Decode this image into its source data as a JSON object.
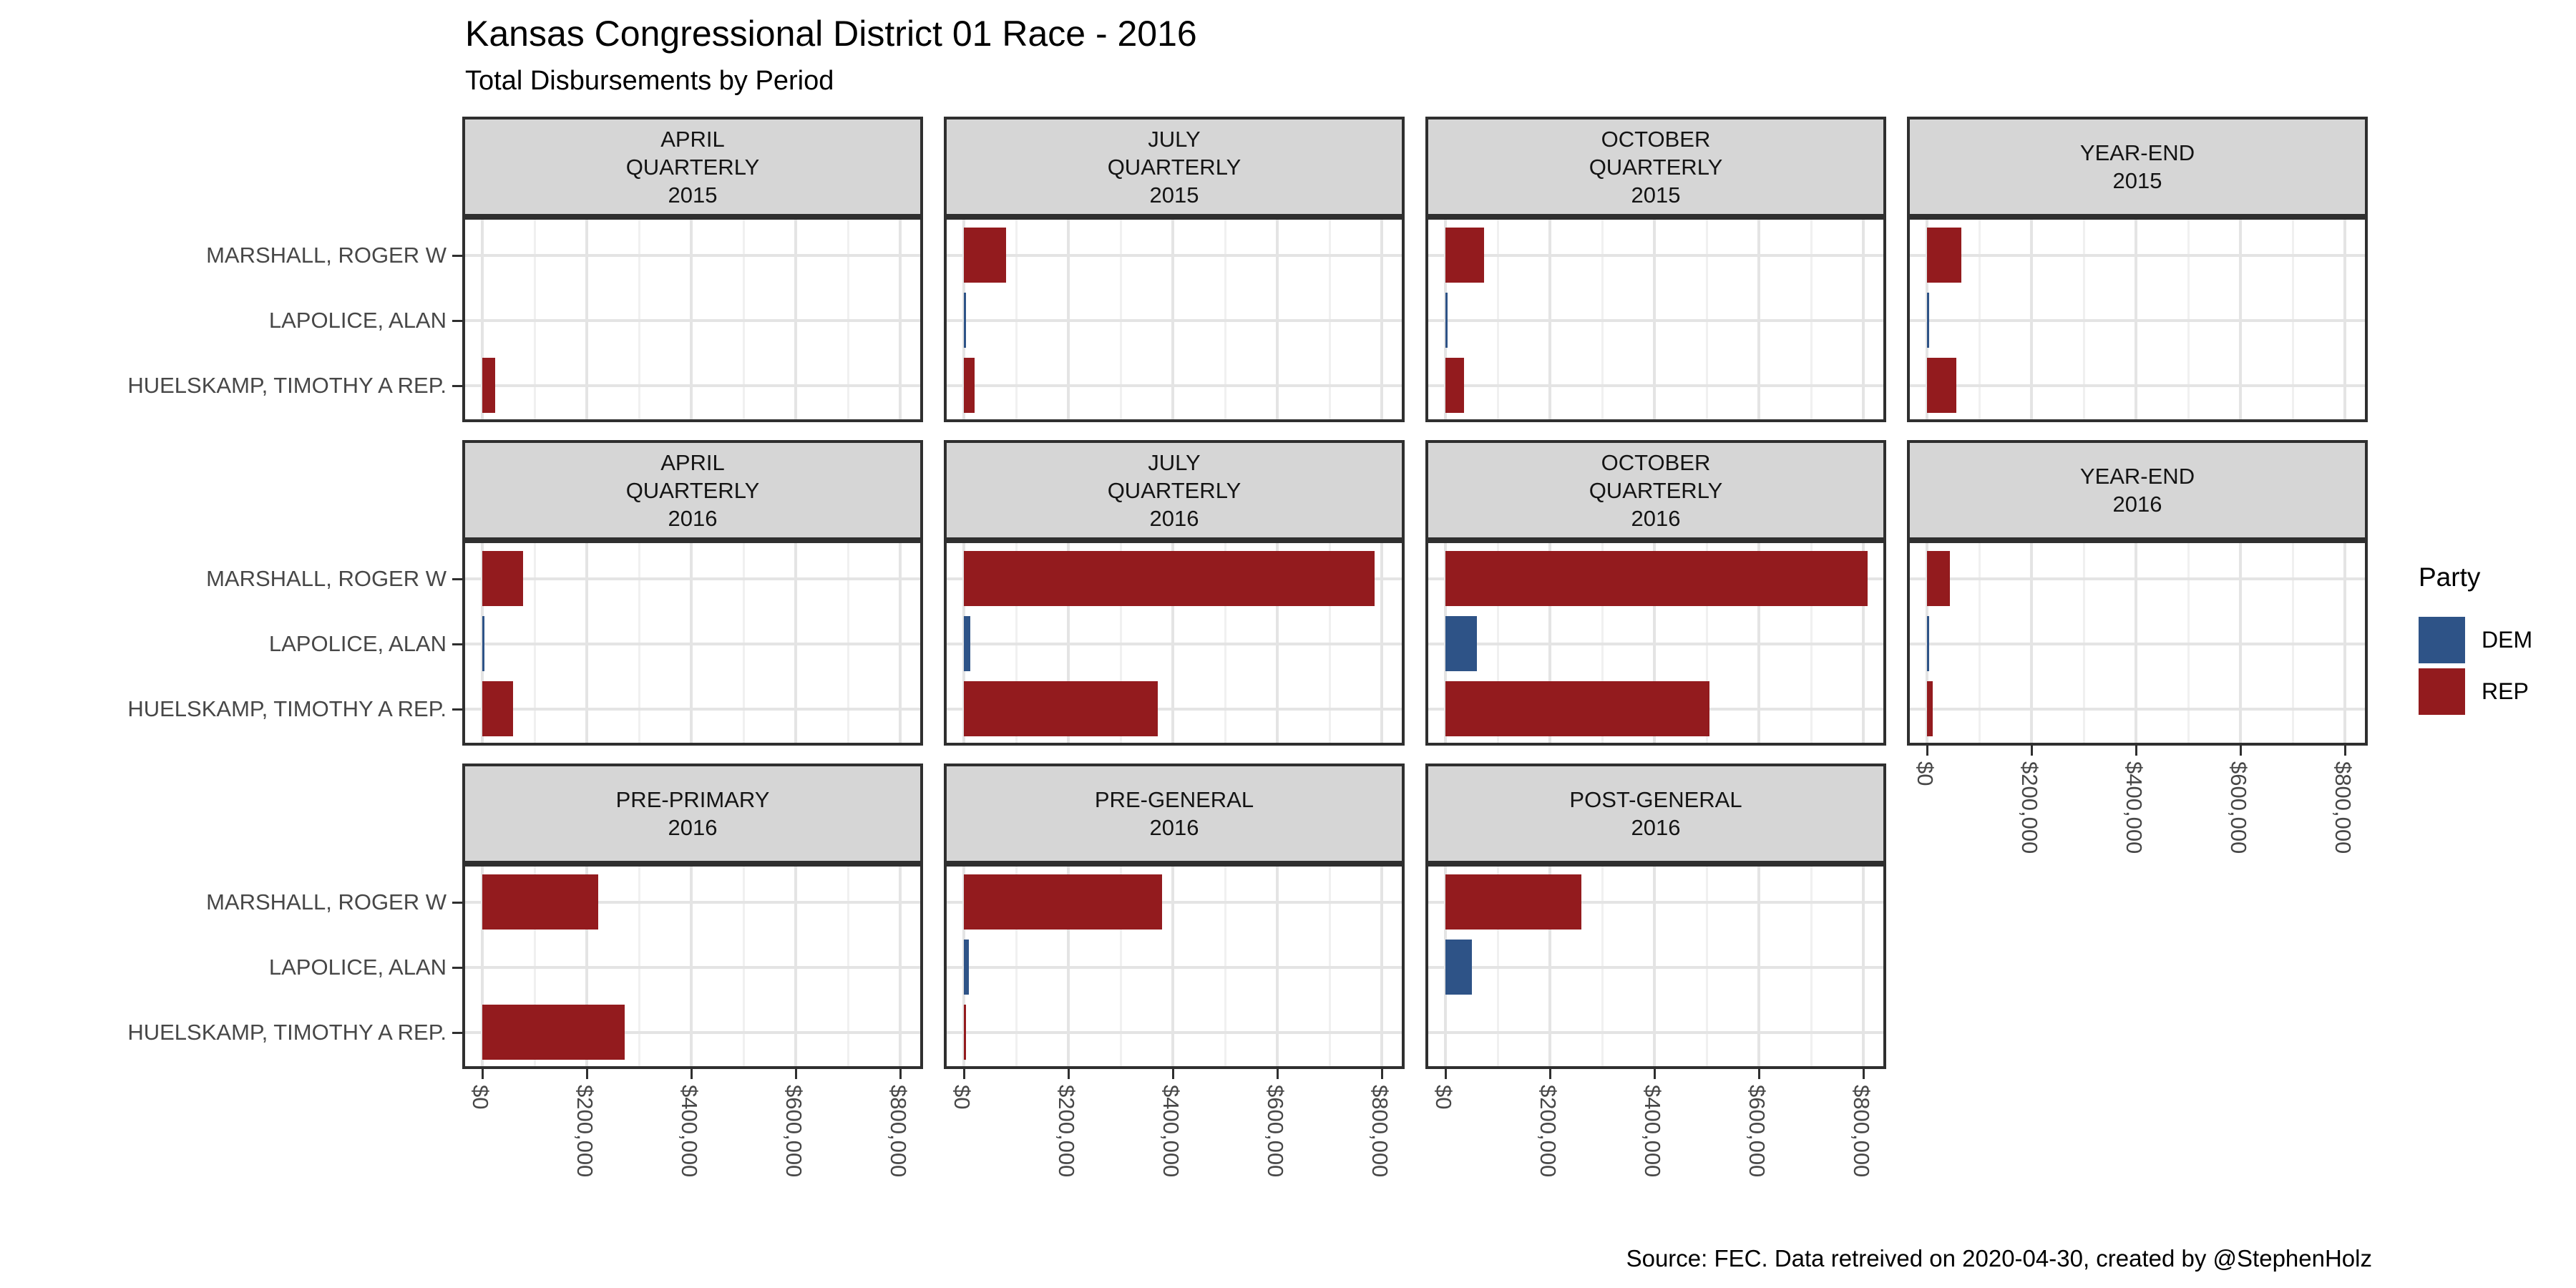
{
  "title": "Kansas Congressional District 01 Race - 2016",
  "subtitle": "Total Disbursements by Period",
  "caption": "Source: FEC. Data retreived on 2020-04-30, created by @StephenHolz",
  "legend": {
    "title": "Party",
    "entries": [
      {
        "label": "DEM",
        "color": "#2E5387"
      },
      {
        "label": "REP",
        "color": "#931B1E"
      }
    ]
  },
  "chart_data": {
    "type": "bar",
    "orientation": "horizontal",
    "title": "Kansas Congressional District 01 Race - 2016",
    "subtitle": "Total Disbursements by Period",
    "grid": "on",
    "legend_position": "right",
    "candidates": [
      "MARSHALL, ROGER W",
      "LAPOLICE, ALAN",
      "HUELSKAMP, TIMOTHY A REP."
    ],
    "candidate_parties": [
      "REP",
      "DEM",
      "REP"
    ],
    "party_colors": {
      "DEM": "#2E5387",
      "REP": "#931B1E"
    },
    "x_ticks": [
      "$0",
      "$200,000",
      "$400,000",
      "$600,000",
      "$800,000"
    ],
    "x_tick_values": [
      0,
      200000,
      400000,
      600000,
      800000
    ],
    "xlim": [
      0,
      860000
    ],
    "facets": [
      {
        "label": "APRIL QUARTERLY 2015",
        "label_lines": [
          "APRIL",
          "QUARTERLY",
          "2015"
        ],
        "row": 0,
        "col": 0,
        "values": [
          0,
          0,
          25000
        ]
      },
      {
        "label": "JULY QUARTERLY 2015",
        "label_lines": [
          "JULY",
          "QUARTERLY",
          "2015"
        ],
        "row": 0,
        "col": 1,
        "values": [
          81000,
          3000,
          21000
        ]
      },
      {
        "label": "OCTOBER QUARTERLY 2015",
        "label_lines": [
          "OCTOBER",
          "QUARTERLY",
          "2015"
        ],
        "row": 0,
        "col": 2,
        "values": [
          74000,
          3000,
          35000
        ]
      },
      {
        "label": "YEAR-END 2015",
        "label_lines": [
          "YEAR-END",
          "2015"
        ],
        "row": 0,
        "col": 3,
        "values": [
          66000,
          2000,
          56000
        ]
      },
      {
        "label": "APRIL QUARTERLY 2016",
        "label_lines": [
          "APRIL",
          "QUARTERLY",
          "2016"
        ],
        "row": 1,
        "col": 0,
        "values": [
          78000,
          4000,
          59000
        ]
      },
      {
        "label": "JULY QUARTERLY 2016",
        "label_lines": [
          "JULY",
          "QUARTERLY",
          "2016"
        ],
        "row": 1,
        "col": 1,
        "values": [
          786000,
          12000,
          371000
        ]
      },
      {
        "label": "OCTOBER QUARTERLY 2016",
        "label_lines": [
          "OCTOBER",
          "QUARTERLY",
          "2016"
        ],
        "row": 1,
        "col": 2,
        "values": [
          808000,
          60000,
          505000
        ]
      },
      {
        "label": "YEAR-END 2016",
        "label_lines": [
          "YEAR-END",
          "2016"
        ],
        "row": 1,
        "col": 3,
        "values": [
          44000,
          2000,
          11000
        ]
      },
      {
        "label": "PRE-PRIMARY 2016",
        "label_lines": [
          "PRE-PRIMARY",
          "2016"
        ],
        "row": 2,
        "col": 0,
        "values": [
          222000,
          0,
          273000
        ]
      },
      {
        "label": "PRE-GENERAL 2016",
        "label_lines": [
          "PRE-GENERAL",
          "2016"
        ],
        "row": 2,
        "col": 1,
        "values": [
          380000,
          10000,
          3000
        ]
      },
      {
        "label": "POST-GENERAL 2016",
        "label_lines": [
          "POST-GENERAL",
          "2016"
        ],
        "row": 2,
        "col": 2,
        "values": [
          260000,
          51000,
          0
        ]
      }
    ]
  }
}
